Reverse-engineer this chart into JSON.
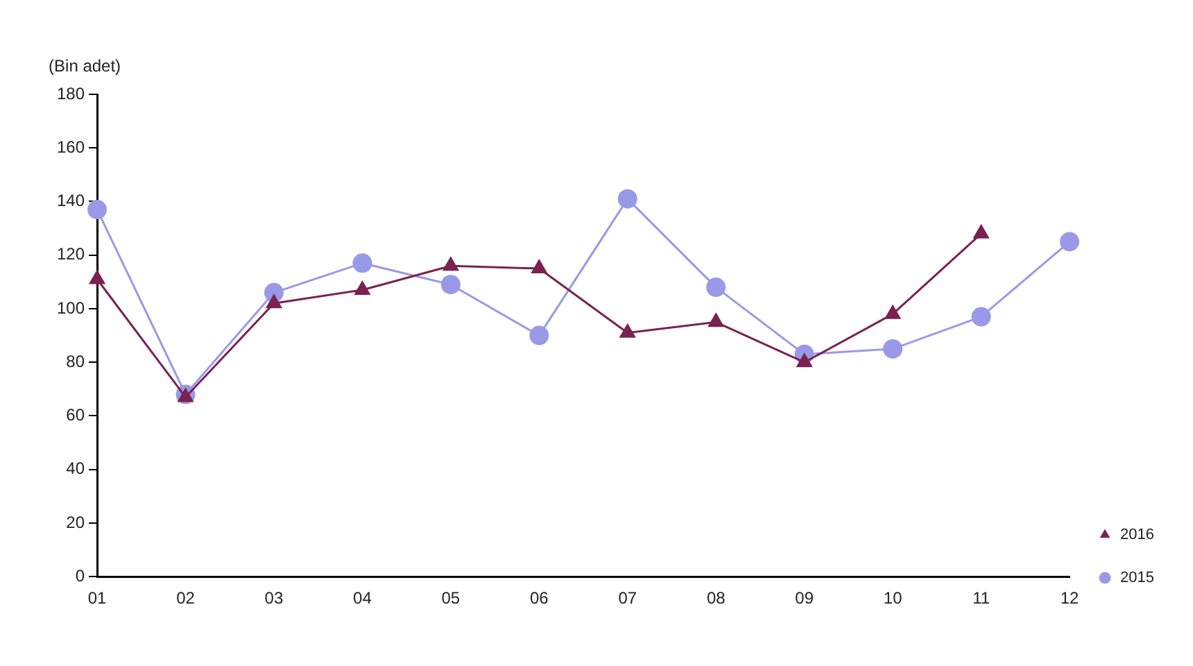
{
  "chart_data": {
    "type": "line",
    "ylabel": "(Bin adet)",
    "categories": [
      "01",
      "02",
      "03",
      "04",
      "05",
      "06",
      "07",
      "08",
      "09",
      "10",
      "11",
      "12"
    ],
    "series": [
      {
        "name": "2015",
        "color": "#9999e8",
        "marker": "circle",
        "values": [
          137,
          68,
          106,
          117,
          109,
          90,
          141,
          108,
          83,
          85,
          97,
          125
        ]
      },
      {
        "name": "2016",
        "color": "#7b2151",
        "marker": "triangle",
        "values": [
          111,
          67,
          102,
          107,
          116,
          115,
          91,
          95,
          80,
          98,
          128,
          null
        ]
      }
    ],
    "ylim": [
      0,
      180
    ],
    "yticks": [
      0,
      20,
      40,
      60,
      80,
      100,
      120,
      140,
      160,
      180
    ],
    "grid": false,
    "legend": "right"
  }
}
